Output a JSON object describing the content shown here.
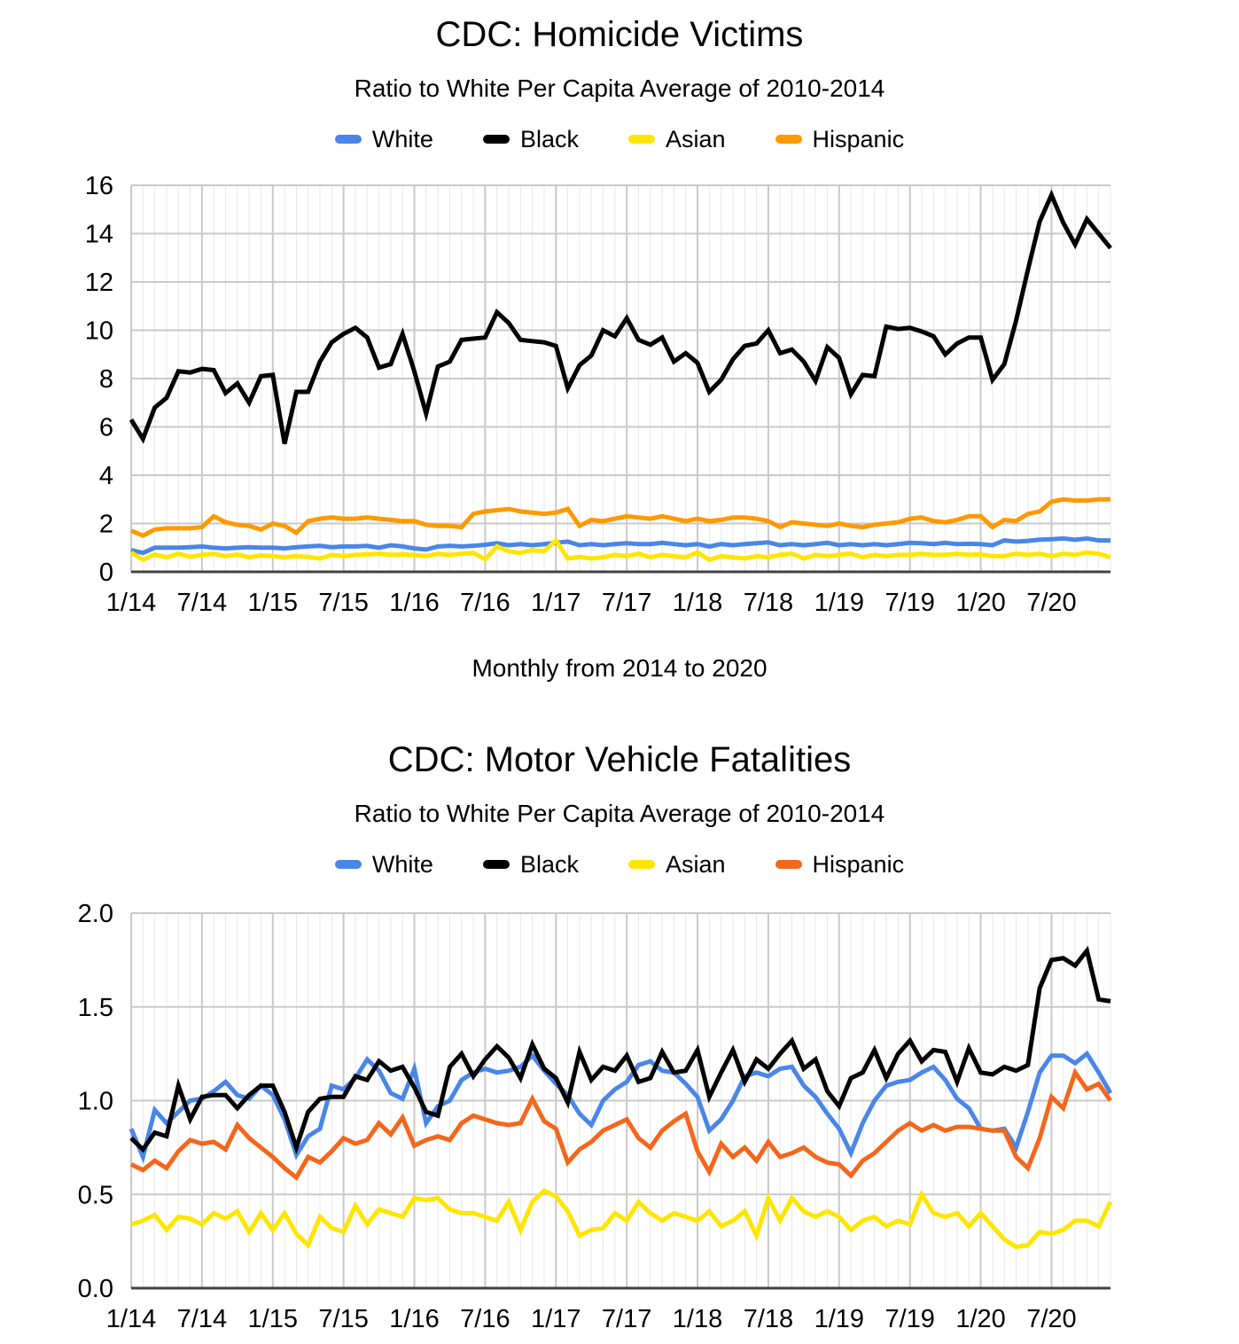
{
  "colors": {
    "background": "#ffffff",
    "axis": "#424242",
    "grid_major": "#c9c9c9",
    "grid_minor": "#e8e8e8",
    "text": "#000000"
  },
  "charts": [
    {
      "title": "CDC: Homicide Victims",
      "subtitle": "Ratio to White Per Capita Average of 2010-2014",
      "caption": "Monthly from 2014 to 2020",
      "legend": [
        {
          "label": "White",
          "color": "#4a86e8"
        },
        {
          "label": "Black",
          "color": "#000000"
        },
        {
          "label": "Asian",
          "color": "#ffe500"
        },
        {
          "label": "Hispanic",
          "color": "#ff9900"
        }
      ]
    },
    {
      "title": "CDC: Motor Vehicle Fatalities",
      "subtitle": "Ratio to White Per Capita Average of 2010-2014",
      "caption": "",
      "legend": [
        {
          "label": "White",
          "color": "#4a86e8"
        },
        {
          "label": "Black",
          "color": "#000000"
        },
        {
          "label": "Asian",
          "color": "#ffe500"
        },
        {
          "label": "Hispanic",
          "color": "#f4661b"
        }
      ]
    }
  ],
  "chart_data": [
    {
      "type": "line",
      "title": "CDC: Homicide Victims",
      "subtitle": "Ratio to White Per Capita Average of 2010-2014",
      "xlabel": "Monthly from 2014 to 2020",
      "ylabel": "",
      "ylim": [
        0,
        16
      ],
      "yticks": [
        0,
        2,
        4,
        6,
        8,
        10,
        12,
        14,
        16
      ],
      "ytick_labels": [
        "0",
        "2",
        "4",
        "6",
        "8",
        "10",
        "12",
        "14",
        "16"
      ],
      "x_start": "1/2014",
      "x_end": "12/2020",
      "n_points": 84,
      "x_tick_every": 6,
      "x_tick_labels": [
        "1/14",
        "7/14",
        "1/15",
        "7/15",
        "1/16",
        "7/16",
        "1/17",
        "7/17",
        "1/18",
        "7/18",
        "1/19",
        "7/19",
        "1/20",
        "7/20"
      ],
      "grid": {
        "h_major": true,
        "v_minor_monthly": true,
        "v_major_semiannual": true
      },
      "legend_position": "top",
      "series": [
        {
          "name": "White",
          "color": "#4a86e8",
          "values": [
            0.9,
            0.78,
            1.0,
            1.0,
            1.0,
            1.02,
            1.05,
            1.0,
            0.97,
            1.0,
            1.02,
            1.0,
            1.0,
            0.97,
            1.02,
            1.05,
            1.08,
            1.02,
            1.05,
            1.05,
            1.07,
            1.0,
            1.1,
            1.05,
            0.97,
            0.92,
            1.05,
            1.08,
            1.05,
            1.08,
            1.12,
            1.18,
            1.1,
            1.15,
            1.1,
            1.15,
            1.2,
            1.25,
            1.1,
            1.15,
            1.1,
            1.15,
            1.18,
            1.15,
            1.15,
            1.2,
            1.15,
            1.1,
            1.15,
            1.05,
            1.15,
            1.1,
            1.15,
            1.18,
            1.22,
            1.1,
            1.15,
            1.1,
            1.15,
            1.2,
            1.1,
            1.15,
            1.1,
            1.15,
            1.1,
            1.15,
            1.2,
            1.18,
            1.15,
            1.2,
            1.15,
            1.16,
            1.15,
            1.1,
            1.3,
            1.25,
            1.28,
            1.33,
            1.35,
            1.38,
            1.33,
            1.38,
            1.3,
            1.3
          ]
        },
        {
          "name": "Black",
          "color": "#000000",
          "values": [
            6.3,
            5.5,
            6.8,
            7.2,
            8.3,
            8.25,
            8.4,
            8.35,
            7.4,
            7.8,
            7.0,
            8.1,
            8.15,
            5.3,
            7.45,
            7.45,
            8.7,
            9.5,
            9.85,
            10.1,
            9.7,
            8.45,
            8.6,
            9.85,
            8.3,
            6.55,
            8.5,
            8.7,
            9.6,
            9.65,
            9.7,
            10.75,
            10.3,
            9.6,
            9.55,
            9.5,
            9.35,
            7.6,
            8.55,
            8.95,
            10.0,
            9.75,
            10.5,
            9.6,
            9.4,
            9.7,
            8.7,
            9.05,
            8.65,
            7.45,
            7.95,
            8.8,
            9.35,
            9.45,
            10.0,
            9.05,
            9.2,
            8.7,
            7.9,
            9.3,
            8.85,
            7.35,
            8.15,
            8.1,
            10.15,
            10.05,
            10.1,
            9.95,
            9.75,
            9.0,
            9.45,
            9.7,
            9.7,
            7.95,
            8.6,
            10.4,
            12.5,
            14.5,
            15.6,
            14.45,
            13.55,
            14.6,
            14.0,
            13.4
          ]
        },
        {
          "name": "Asian",
          "color": "#ffe500",
          "values": [
            0.8,
            0.5,
            0.72,
            0.6,
            0.75,
            0.62,
            0.7,
            0.75,
            0.65,
            0.72,
            0.6,
            0.68,
            0.65,
            0.6,
            0.65,
            0.62,
            0.55,
            0.7,
            0.65,
            0.7,
            0.72,
            0.75,
            0.7,
            0.72,
            0.7,
            0.65,
            0.75,
            0.7,
            0.75,
            0.78,
            0.52,
            1.05,
            0.85,
            0.78,
            0.9,
            0.85,
            1.3,
            0.55,
            0.62,
            0.55,
            0.6,
            0.7,
            0.65,
            0.75,
            0.6,
            0.7,
            0.65,
            0.6,
            0.8,
            0.5,
            0.65,
            0.6,
            0.55,
            0.65,
            0.6,
            0.7,
            0.75,
            0.55,
            0.7,
            0.65,
            0.7,
            0.75,
            0.6,
            0.7,
            0.65,
            0.7,
            0.7,
            0.75,
            0.7,
            0.7,
            0.75,
            0.7,
            0.72,
            0.65,
            0.65,
            0.75,
            0.7,
            0.75,
            0.65,
            0.75,
            0.7,
            0.8,
            0.75,
            0.6
          ]
        },
        {
          "name": "Hispanic",
          "color": "#ff9900",
          "values": [
            1.7,
            1.5,
            1.75,
            1.8,
            1.8,
            1.8,
            1.85,
            2.3,
            2.05,
            1.95,
            1.9,
            1.75,
            2.0,
            1.9,
            1.62,
            2.1,
            2.2,
            2.25,
            2.2,
            2.2,
            2.25,
            2.2,
            2.15,
            2.1,
            2.1,
            1.95,
            1.9,
            1.9,
            1.85,
            2.4,
            2.5,
            2.55,
            2.6,
            2.5,
            2.45,
            2.4,
            2.45,
            2.6,
            1.9,
            2.15,
            2.1,
            2.2,
            2.3,
            2.25,
            2.2,
            2.3,
            2.2,
            2.1,
            2.2,
            2.1,
            2.15,
            2.25,
            2.25,
            2.2,
            2.1,
            1.85,
            2.05,
            2.0,
            1.95,
            1.9,
            2.0,
            1.9,
            1.85,
            1.95,
            2.0,
            2.05,
            2.2,
            2.25,
            2.1,
            2.05,
            2.15,
            2.3,
            2.3,
            1.85,
            2.15,
            2.1,
            2.4,
            2.5,
            2.9,
            3.0,
            2.95,
            2.95,
            3.0,
            3.0
          ]
        }
      ]
    },
    {
      "type": "line",
      "title": "CDC: Motor Vehicle Fatalities",
      "subtitle": "Ratio to White Per Capita Average of 2010-2014",
      "xlabel": "",
      "ylabel": "",
      "ylim": [
        0,
        2
      ],
      "yticks": [
        0,
        0.5,
        1,
        1.5,
        2
      ],
      "ytick_labels": [
        "0.0",
        "0.5",
        "1.0",
        "1.5",
        "2.0"
      ],
      "x_start": "1/2014",
      "x_end": "12/2020",
      "n_points": 84,
      "x_tick_every": 6,
      "x_tick_labels": [
        "1/14",
        "7/14",
        "1/15",
        "7/15",
        "1/16",
        "7/16",
        "1/17",
        "7/17",
        "1/18",
        "7/18",
        "1/19",
        "7/19",
        "1/20",
        "7/20"
      ],
      "grid": {
        "h_major": true,
        "v_minor_monthly": true,
        "v_major_semiannual": true
      },
      "legend_position": "top",
      "series": [
        {
          "name": "White",
          "color": "#4a86e8",
          "values": [
            0.85,
            0.7,
            0.95,
            0.88,
            0.94,
            1.0,
            1.01,
            1.05,
            1.1,
            1.03,
            1.01,
            1.08,
            1.03,
            0.9,
            0.71,
            0.81,
            0.85,
            1.08,
            1.06,
            1.12,
            1.22,
            1.16,
            1.04,
            1.01,
            1.17,
            0.88,
            0.97,
            1.0,
            1.11,
            1.15,
            1.17,
            1.15,
            1.16,
            1.18,
            1.24,
            1.16,
            1.09,
            1.03,
            0.93,
            0.87,
            1.0,
            1.06,
            1.1,
            1.19,
            1.21,
            1.16,
            1.15,
            1.09,
            1.02,
            0.84,
            0.9,
            1.0,
            1.13,
            1.15,
            1.13,
            1.17,
            1.18,
            1.08,
            1.02,
            0.93,
            0.85,
            0.72,
            0.88,
            1.0,
            1.08,
            1.1,
            1.11,
            1.15,
            1.18,
            1.11,
            1.01,
            0.96,
            0.85,
            0.84,
            0.85,
            0.75,
            0.94,
            1.15,
            1.24,
            1.24,
            1.2,
            1.25,
            1.15,
            1.04
          ]
        },
        {
          "name": "Black",
          "color": "#000000",
          "values": [
            0.8,
            0.74,
            0.83,
            0.81,
            1.08,
            0.9,
            1.02,
            1.03,
            1.03,
            0.96,
            1.03,
            1.08,
            1.08,
            0.94,
            0.75,
            0.94,
            1.01,
            1.02,
            1.02,
            1.13,
            1.11,
            1.21,
            1.16,
            1.18,
            1.07,
            0.94,
            0.92,
            1.18,
            1.25,
            1.13,
            1.22,
            1.29,
            1.23,
            1.12,
            1.3,
            1.17,
            1.12,
            0.99,
            1.26,
            1.11,
            1.18,
            1.16,
            1.24,
            1.1,
            1.12,
            1.26,
            1.15,
            1.16,
            1.27,
            1.02,
            1.15,
            1.27,
            1.1,
            1.22,
            1.17,
            1.25,
            1.32,
            1.17,
            1.22,
            1.05,
            0.97,
            1.12,
            1.15,
            1.27,
            1.12,
            1.25,
            1.32,
            1.21,
            1.27,
            1.26,
            1.1,
            1.28,
            1.15,
            1.14,
            1.18,
            1.16,
            1.19,
            1.6,
            1.75,
            1.76,
            1.72,
            1.8,
            1.54,
            1.53
          ]
        },
        {
          "name": "Asian",
          "color": "#ffe500",
          "values": [
            0.34,
            0.36,
            0.39,
            0.31,
            0.38,
            0.37,
            0.34,
            0.4,
            0.37,
            0.41,
            0.3,
            0.4,
            0.31,
            0.4,
            0.29,
            0.23,
            0.38,
            0.32,
            0.3,
            0.44,
            0.34,
            0.42,
            0.4,
            0.38,
            0.48,
            0.47,
            0.48,
            0.42,
            0.4,
            0.4,
            0.38,
            0.36,
            0.46,
            0.31,
            0.46,
            0.52,
            0.49,
            0.41,
            0.28,
            0.31,
            0.32,
            0.4,
            0.36,
            0.46,
            0.4,
            0.36,
            0.4,
            0.38,
            0.36,
            0.41,
            0.33,
            0.36,
            0.41,
            0.28,
            0.48,
            0.36,
            0.48,
            0.41,
            0.38,
            0.41,
            0.38,
            0.31,
            0.36,
            0.38,
            0.33,
            0.36,
            0.34,
            0.5,
            0.4,
            0.38,
            0.4,
            0.33,
            0.4,
            0.33,
            0.26,
            0.22,
            0.23,
            0.3,
            0.29,
            0.31,
            0.36,
            0.36,
            0.33,
            0.46
          ]
        },
        {
          "name": "Hispanic",
          "color": "#f4661b",
          "values": [
            0.66,
            0.63,
            0.68,
            0.64,
            0.73,
            0.79,
            0.77,
            0.78,
            0.74,
            0.87,
            0.8,
            0.75,
            0.7,
            0.64,
            0.59,
            0.7,
            0.67,
            0.73,
            0.8,
            0.77,
            0.79,
            0.88,
            0.82,
            0.91,
            0.76,
            0.79,
            0.81,
            0.79,
            0.88,
            0.92,
            0.9,
            0.88,
            0.87,
            0.88,
            1.01,
            0.89,
            0.85,
            0.67,
            0.74,
            0.78,
            0.84,
            0.87,
            0.9,
            0.8,
            0.75,
            0.84,
            0.89,
            0.93,
            0.73,
            0.62,
            0.77,
            0.7,
            0.75,
            0.68,
            0.78,
            0.7,
            0.72,
            0.75,
            0.7,
            0.67,
            0.66,
            0.6,
            0.68,
            0.72,
            0.78,
            0.84,
            0.88,
            0.84,
            0.87,
            0.84,
            0.86,
            0.86,
            0.85,
            0.84,
            0.84,
            0.7,
            0.64,
            0.8,
            1.02,
            0.96,
            1.15,
            1.06,
            1.09,
            1.0
          ]
        }
      ]
    }
  ]
}
